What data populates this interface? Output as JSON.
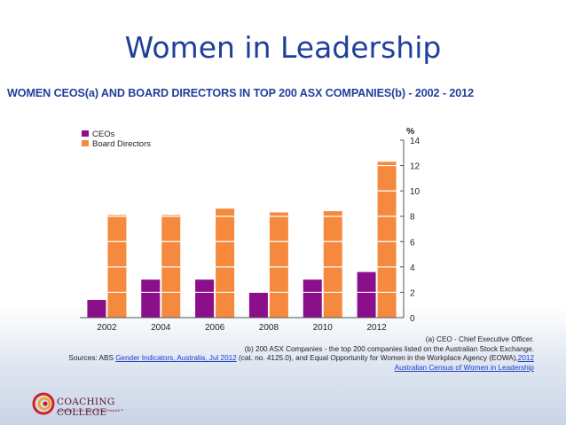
{
  "page": {
    "title": "Women in Leadership",
    "subtitle": "WOMEN CEOS(a) AND BOARD DIRECTORS IN TOP 200 ASX COMPANIES(b) - 2002 - 2012"
  },
  "chart_data": {
    "type": "bar",
    "categories": [
      "2002",
      "2004",
      "2006",
      "2008",
      "2010",
      "2012"
    ],
    "series": [
      {
        "name": "CEOs",
        "values": [
          1.4,
          3.0,
          3.0,
          2.0,
          3.0,
          3.6
        ],
        "color": "#8b0f8b"
      },
      {
        "name": "Board Directors",
        "values": [
          8.1,
          8.1,
          8.6,
          8.3,
          8.4,
          12.3
        ],
        "color": "#f58a3e"
      }
    ],
    "y_unit": "%",
    "ylim": [
      0,
      14
    ],
    "yticks": [
      "0",
      "2",
      "4",
      "6",
      "8",
      "10",
      "12",
      "14"
    ],
    "grid": true,
    "legend_position": "top-left"
  },
  "notes": {
    "note_a": "(a) CEO - Chief Executive Officer.",
    "note_b": "(b) 200 ASX Companies - the top 200 companies listed on the Australian Stock Exchange.",
    "sources_prefix": "Sources: ABS ",
    "sources_link1": "Gender Indicators, Australia, Jul 2012",
    "sources_mid": " (cat. no. 4125.0), and Equal Opportunity for Women in the Workplace Agency (EOWA),",
    "sources_link2": "2012 Australian Census of Women in Leadership"
  },
  "logo": {
    "name": "COACHING COLLEGE",
    "tagline": "MAKING YOUR LIFE FOR A CHANGE™"
  }
}
